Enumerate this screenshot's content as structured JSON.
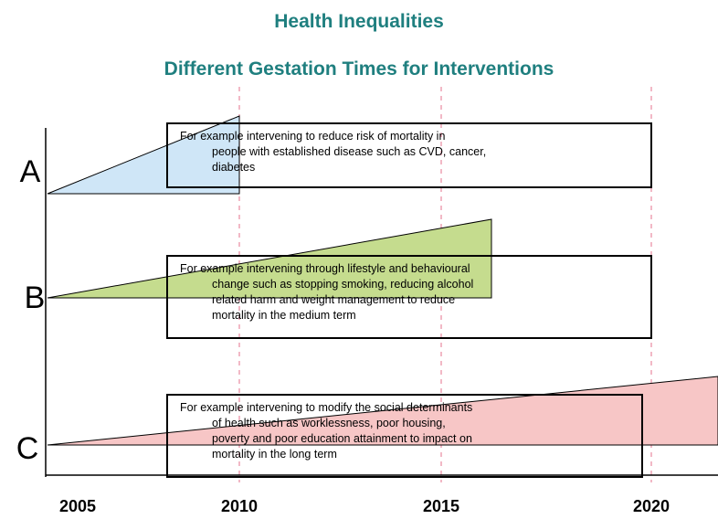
{
  "header": {
    "title": "Health Inequalities",
    "subtitle": "Different Gestation Times for Interventions"
  },
  "rows": [
    {
      "label": "A",
      "lines": [
        "For example intervening to reduce risk of mortality in",
        "people with established disease such as CVD, cancer,",
        "diabetes"
      ]
    },
    {
      "label": "B",
      "lines": [
        "For example intervening through lifestyle and behavioural",
        "change such as stopping smoking, reducing alcohol",
        "related harm and weight management to reduce",
        "mortality in the medium term"
      ]
    },
    {
      "label": "C",
      "lines": [
        "For example intervening to modify the social determinants",
        "of health such as worklessness, poor housing,",
        "poverty and poor education attainment to impact on",
        "mortality in the long term"
      ]
    }
  ],
  "axis": {
    "years": [
      "2005",
      "2010",
      "2015",
      "2020"
    ]
  }
}
